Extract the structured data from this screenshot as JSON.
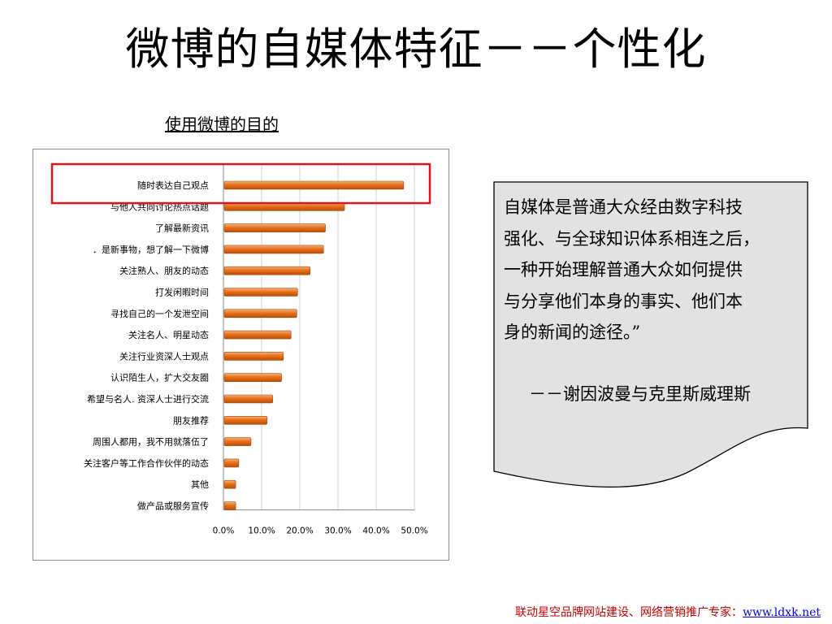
{
  "slide": {
    "title": "微博的自媒体特征－－个性化",
    "chart_caption": "使用微博的目的"
  },
  "quote": {
    "lines": [
      "自媒体是普通大众经由数字科技",
      "强化、与全球知识体系相连之后，",
      "一种开始理解普通大众如何提供",
      "与分享他们本身的事实、他们本",
      "身的新闻的途径。”"
    ],
    "attribution": "－－谢因波曼与克里斯威理斯"
  },
  "footer": {
    "text": "联动星空品牌网站建设、网络营销推广专家：",
    "link": "www.ldxk.net"
  },
  "colors": {
    "bar": "#e8701a",
    "highlight": "#e0141e"
  },
  "chart_data": {
    "type": "bar",
    "orientation": "horizontal",
    "title": "使用微博的目的",
    "xlim": [
      0,
      50
    ],
    "x_ticks": [
      "0.0%",
      "10.0%",
      "20.0%",
      "30.0%",
      "40.0%",
      "50.0%"
    ],
    "categories": [
      "随时表达自己观点",
      "与他人共同讨论热点话题",
      "了解最新资讯",
      "．是新事物，想了解一下微博",
      "关注熟人、朋友的动态",
      "打发闲暇时间",
      "寻找自己的一个发泄空间",
      "关注名人、明星动态",
      "关注行业资深人士观点",
      "认识陌生人，扩大交友圈",
      "希望与名人. 资深人士进行交流",
      "朋友推荐",
      "周围人都用，我不用就落伍了",
      "关注客户等工作合作伙伴的动态",
      "其他",
      "做产品或服务宣传"
    ],
    "values": [
      47.0,
      31.5,
      26.5,
      26.0,
      22.5,
      19.2,
      19.0,
      17.5,
      15.5,
      15.0,
      12.7,
      11.2,
      7.0,
      3.8,
      3.0,
      3.0
    ],
    "highlighted_category": "随时表达自己观点",
    "grid": true
  }
}
